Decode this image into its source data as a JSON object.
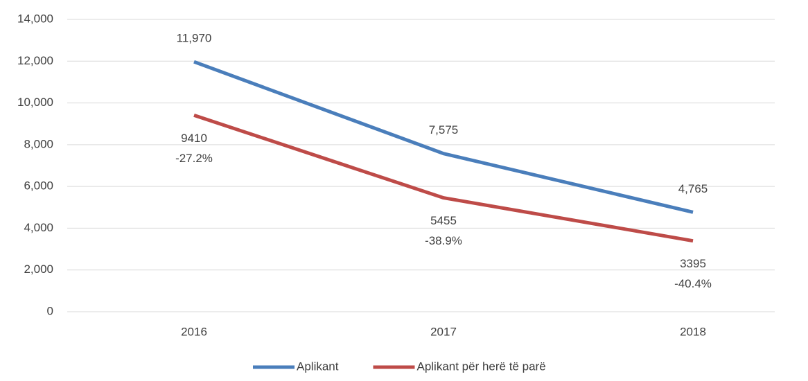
{
  "chart_data": {
    "type": "line",
    "categories": [
      "2016",
      "2017",
      "2018"
    ],
    "series": [
      {
        "name": "Aplikant",
        "color": "#4a7ebb",
        "values": [
          11970,
          7575,
          4765
        ],
        "value_labels": [
          "11,970",
          "7,575",
          "4,765"
        ]
      },
      {
        "name": "Aplikant për herë të parë",
        "color": "#be4b48",
        "values": [
          9410,
          5455,
          3395
        ],
        "annotations": [
          "-27.2%",
          "-38.9%",
          "-40.4%"
        ]
      }
    ],
    "ylim": [
      0,
      14000
    ],
    "yticks": [
      0,
      {
        "value": 2000,
        "label": "2,000"
      },
      {
        "value": 4000,
        "label": "4,000"
      },
      {
        "value": 6000,
        "label": "6,000"
      },
      {
        "value": 8000,
        "label": "8,000"
      },
      {
        "value": 10000,
        "label": "10,000"
      },
      {
        "value": 12000,
        "label": "12,000"
      },
      {
        "value": 14000,
        "label": "14,000"
      }
    ],
    "grid": true
  }
}
